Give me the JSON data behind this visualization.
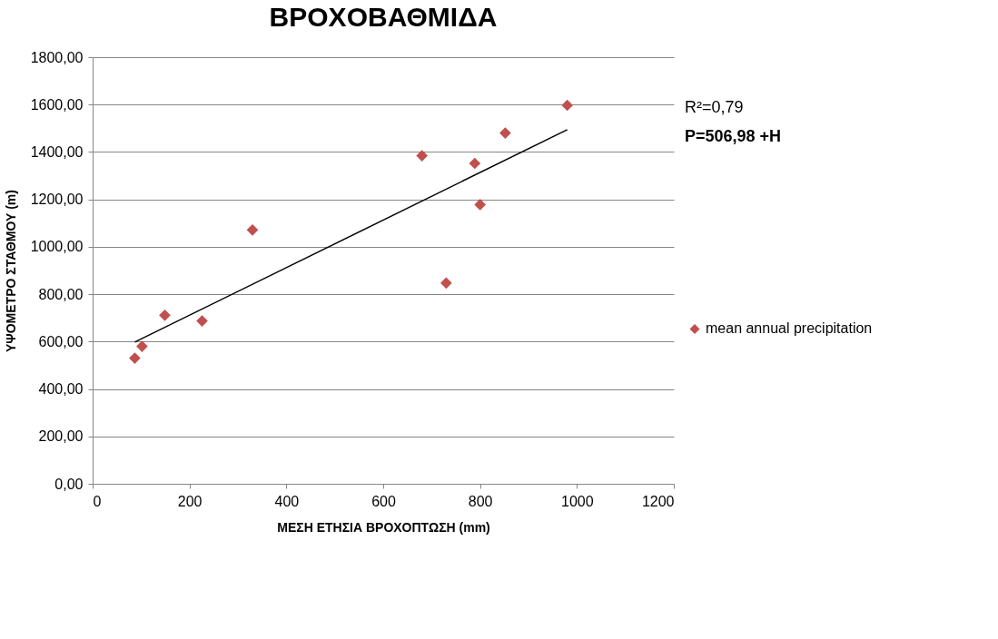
{
  "chart_data": {
    "type": "scatter",
    "title": "ΒΡΟΧΟΒΑΘΜΙΔΑ",
    "xlabel": "ΜΕΣΗ ΕΤΗΣΙΑ ΒΡΟΧΟΠΤΩΣΗ  (mm)",
    "ylabel": "ΥΨΟΜΕΤΡΟ ΣΤΑΘΜΟΥ (m)",
    "series": [
      {
        "name": "mean annual precipitation",
        "color": "#c0504d",
        "marker": "diamond",
        "x": [
          87,
          102,
          149,
          226,
          330,
          680,
          730,
          789,
          800,
          852,
          980
        ],
        "values": [
          530,
          580,
          711,
          687,
          1071,
          1384,
          847,
          1352,
          1178,
          1480,
          1597
        ]
      },
      {
        "color": "#000000",
        "type": "line",
        "x": [
          87,
          980
        ],
        "values": [
          598,
          1494
        ]
      }
    ],
    "xlim": [
      0,
      1200
    ],
    "xticks": [
      0,
      200,
      400,
      600,
      800,
      1000,
      1200
    ],
    "ylim": [
      0,
      1800
    ],
    "yticks": [
      {
        "value": 0,
        "label": "0,00"
      },
      {
        "value": 200,
        "label": "200,00"
      },
      {
        "value": 400,
        "label": "400,00"
      },
      {
        "value": 600,
        "label": "600,00"
      },
      {
        "value": 800,
        "label": "800,00"
      },
      {
        "value": 1000,
        "label": "1000,00"
      },
      {
        "value": 1200,
        "label": "1200,00"
      },
      {
        "value": 1400,
        "label": "1400,00"
      },
      {
        "value": 1600,
        "label": "1600,00"
      },
      {
        "value": 1800,
        "label": "1800,00"
      }
    ],
    "grid": "y",
    "legend": "right",
    "annotations": [
      "R²=0,79",
      "P=506,98 +H"
    ]
  }
}
